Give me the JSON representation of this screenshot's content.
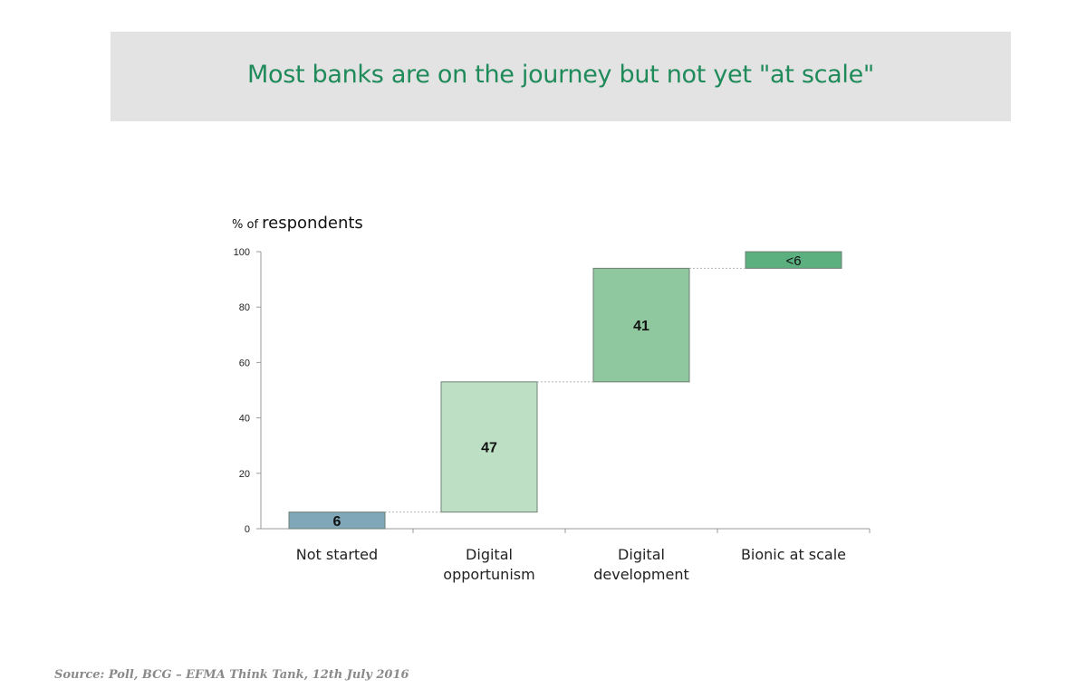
{
  "banner": {
    "title": "Most banks are on the journey but not yet \"at scale\""
  },
  "chart_data": {
    "type": "bar",
    "subtype": "waterfall",
    "title": "Most banks are on the journey but not yet \"at scale\"",
    "ylabel_prefix": "% of ",
    "ylabel": "respondents",
    "xlabel": "",
    "ylim": [
      0,
      100
    ],
    "yticks": [
      0,
      20,
      40,
      60,
      80,
      100
    ],
    "grid": false,
    "categories": [
      [
        "Not started"
      ],
      [
        "Digital",
        "opportunism"
      ],
      [
        "Digital",
        "development"
      ],
      [
        "Bionic at scale"
      ]
    ],
    "values": [
      6,
      47,
      41,
      6
    ],
    "bases": [
      0,
      6,
      53,
      94
    ],
    "data_labels": [
      "6",
      "47",
      "41",
      "<6"
    ],
    "colors": [
      "#7fa7b7",
      "#bde0c4",
      "#8fc79f",
      "#5cb080"
    ]
  },
  "source": "Source: Poll, BCG – EFMA Think Tank, 12th July 2016"
}
